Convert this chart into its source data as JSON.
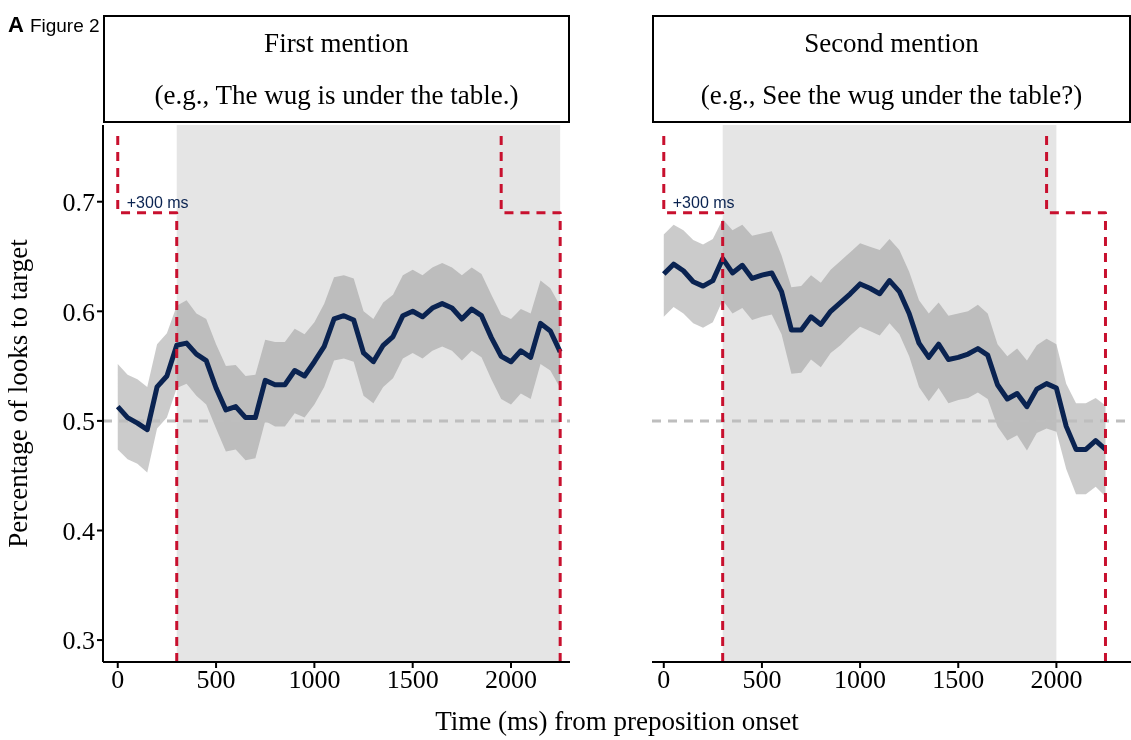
{
  "chart_data": [
    {
      "type": "line",
      "title": "First mention",
      "subtitle": "(e.g., The wug is under the table.)",
      "xlabel": "Time (ms) from preposition onset",
      "ylabel": "Percentage of looks to target",
      "annotations": [
        "A",
        "Figure 2",
        "+300 ms"
      ],
      "x": [
        0,
        50,
        100,
        150,
        200,
        250,
        300,
        350,
        400,
        450,
        500,
        550,
        600,
        650,
        700,
        750,
        800,
        850,
        900,
        950,
        1000,
        1050,
        1100,
        1150,
        1200,
        1250,
        1300,
        1350,
        1400,
        1450,
        1500,
        1550,
        1600,
        1650,
        1700,
        1750,
        1800,
        1850,
        1900,
        1950,
        2000,
        2050,
        2100,
        2150,
        2200,
        2250
      ],
      "series": [
        {
          "color": "#0a2351",
          "values": [
            0.513,
            0.503,
            0.498,
            0.492,
            0.531,
            0.541,
            0.569,
            0.571,
            0.561,
            0.555,
            0.53,
            0.51,
            0.513,
            0.503,
            0.503,
            0.537,
            0.533,
            0.533,
            0.546,
            0.541,
            0.554,
            0.568,
            0.593,
            0.596,
            0.592,
            0.562,
            0.554,
            0.569,
            0.577,
            0.596,
            0.6,
            0.595,
            0.603,
            0.607,
            0.603,
            0.593,
            0.602,
            0.596,
            0.576,
            0.559,
            0.554,
            0.564,
            0.558,
            0.589,
            0.582,
            0.563
          ],
          "lower": [
            0.474,
            0.465,
            0.461,
            0.453,
            0.493,
            0.503,
            0.53,
            0.534,
            0.523,
            0.515,
            0.493,
            0.472,
            0.474,
            0.464,
            0.466,
            0.5,
            0.495,
            0.495,
            0.507,
            0.503,
            0.515,
            0.531,
            0.555,
            0.557,
            0.554,
            0.523,
            0.516,
            0.531,
            0.539,
            0.557,
            0.562,
            0.557,
            0.564,
            0.568,
            0.564,
            0.555,
            0.564,
            0.558,
            0.538,
            0.52,
            0.515,
            0.525,
            0.52,
            0.552,
            0.546,
            0.53
          ],
          "upper": [
            0.552,
            0.542,
            0.538,
            0.531,
            0.57,
            0.58,
            0.605,
            0.61,
            0.598,
            0.593,
            0.57,
            0.55,
            0.551,
            0.541,
            0.542,
            0.574,
            0.572,
            0.572,
            0.584,
            0.579,
            0.59,
            0.607,
            0.631,
            0.633,
            0.63,
            0.6,
            0.593,
            0.608,
            0.615,
            0.633,
            0.638,
            0.633,
            0.64,
            0.644,
            0.64,
            0.633,
            0.64,
            0.634,
            0.615,
            0.597,
            0.593,
            0.602,
            0.598,
            0.628,
            0.621,
            0.605
          ]
        },
        {
          "color": "#c8102e",
          "line_style": "dashed",
          "x": [
            0,
            0,
            300,
            300
          ],
          "values": [
            0.76,
            0.69,
            0.69,
            0.28
          ]
        },
        {
          "color": "#c8102e",
          "line_style": "dashed",
          "x": [
            1950,
            1950,
            2250,
            2250
          ],
          "values": [
            0.76,
            0.69,
            0.69,
            0.28
          ]
        }
      ],
      "bands": [
        {
          "axis": "x",
          "from": 300,
          "to": 2250,
          "color": "#e5e5e5"
        }
      ],
      "ref_lines": [
        {
          "axis": "y",
          "value": 0.5,
          "color": "#bebebe",
          "line_style": "dashed"
        }
      ],
      "xlim": [
        -75,
        2300
      ],
      "ylim": [
        0.28,
        0.77
      ],
      "xticks": [
        0,
        500,
        1000,
        1500,
        2000
      ],
      "yticks": [
        0.3,
        0.4,
        0.5,
        0.6,
        0.7
      ]
    },
    {
      "type": "line",
      "title": "Second mention",
      "subtitle": "(e.g., See the wug under the table?)",
      "tick_labels": "x",
      "annotations": [
        "+300 ms"
      ],
      "x": [
        0,
        50,
        100,
        150,
        200,
        250,
        300,
        350,
        400,
        450,
        500,
        550,
        600,
        650,
        700,
        750,
        800,
        850,
        900,
        950,
        1000,
        1050,
        1100,
        1150,
        1200,
        1250,
        1300,
        1350,
        1400,
        1450,
        1500,
        1550,
        1600,
        1650,
        1700,
        1750,
        1800,
        1850,
        1900,
        1950,
        2000,
        2050,
        2100,
        2150,
        2200,
        2250
      ],
      "series": [
        {
          "color": "#0a2351",
          "values": [
            0.634,
            0.643,
            0.637,
            0.627,
            0.623,
            0.628,
            0.648,
            0.635,
            0.642,
            0.63,
            0.633,
            0.635,
            0.618,
            0.583,
            0.583,
            0.595,
            0.588,
            0.6,
            0.608,
            0.616,
            0.625,
            0.621,
            0.616,
            0.628,
            0.618,
            0.598,
            0.571,
            0.558,
            0.57,
            0.556,
            0.558,
            0.561,
            0.566,
            0.56,
            0.533,
            0.52,
            0.525,
            0.513,
            0.529,
            0.534,
            0.53,
            0.495,
            0.474,
            0.474,
            0.482,
            0.474
          ],
          "lower": [
            0.595,
            0.604,
            0.598,
            0.589,
            0.585,
            0.59,
            0.61,
            0.598,
            0.603,
            0.592,
            0.595,
            0.597,
            0.579,
            0.543,
            0.544,
            0.556,
            0.549,
            0.562,
            0.569,
            0.578,
            0.586,
            0.582,
            0.578,
            0.589,
            0.579,
            0.559,
            0.531,
            0.518,
            0.53,
            0.516,
            0.519,
            0.521,
            0.526,
            0.52,
            0.495,
            0.482,
            0.487,
            0.473,
            0.489,
            0.493,
            0.49,
            0.456,
            0.433,
            0.433,
            0.44,
            0.431
          ],
          "upper": [
            0.67,
            0.679,
            0.674,
            0.665,
            0.661,
            0.666,
            0.684,
            0.674,
            0.679,
            0.669,
            0.671,
            0.673,
            0.651,
            0.622,
            0.623,
            0.633,
            0.626,
            0.638,
            0.646,
            0.654,
            0.662,
            0.659,
            0.656,
            0.666,
            0.656,
            0.636,
            0.61,
            0.598,
            0.608,
            0.596,
            0.598,
            0.6,
            0.606,
            0.598,
            0.57,
            0.559,
            0.566,
            0.555,
            0.569,
            0.575,
            0.57,
            0.534,
            0.516,
            0.516,
            0.521,
            0.514
          ]
        },
        {
          "color": "#c8102e",
          "line_style": "dashed",
          "x": [
            0,
            0,
            300,
            300
          ],
          "values": [
            0.76,
            0.69,
            0.69,
            0.28
          ]
        },
        {
          "color": "#c8102e",
          "line_style": "dashed",
          "x": [
            1950,
            1950,
            2250,
            2250
          ],
          "values": [
            0.76,
            0.69,
            0.69,
            0.28
          ]
        }
      ],
      "bands": [
        {
          "axis": "x",
          "from": 300,
          "to": 2000,
          "color": "#e5e5e5"
        }
      ],
      "ref_lines": [
        {
          "axis": "y",
          "value": 0.5,
          "color": "#bebebe",
          "line_style": "dashed"
        }
      ],
      "xlim": [
        -60,
        2380
      ],
      "ylim": [
        0.28,
        0.77
      ],
      "xticks": [
        0,
        500,
        1000,
        1500,
        2000
      ],
      "yticks": [
        0.3,
        0.4,
        0.5,
        0.6,
        0.7
      ]
    }
  ]
}
